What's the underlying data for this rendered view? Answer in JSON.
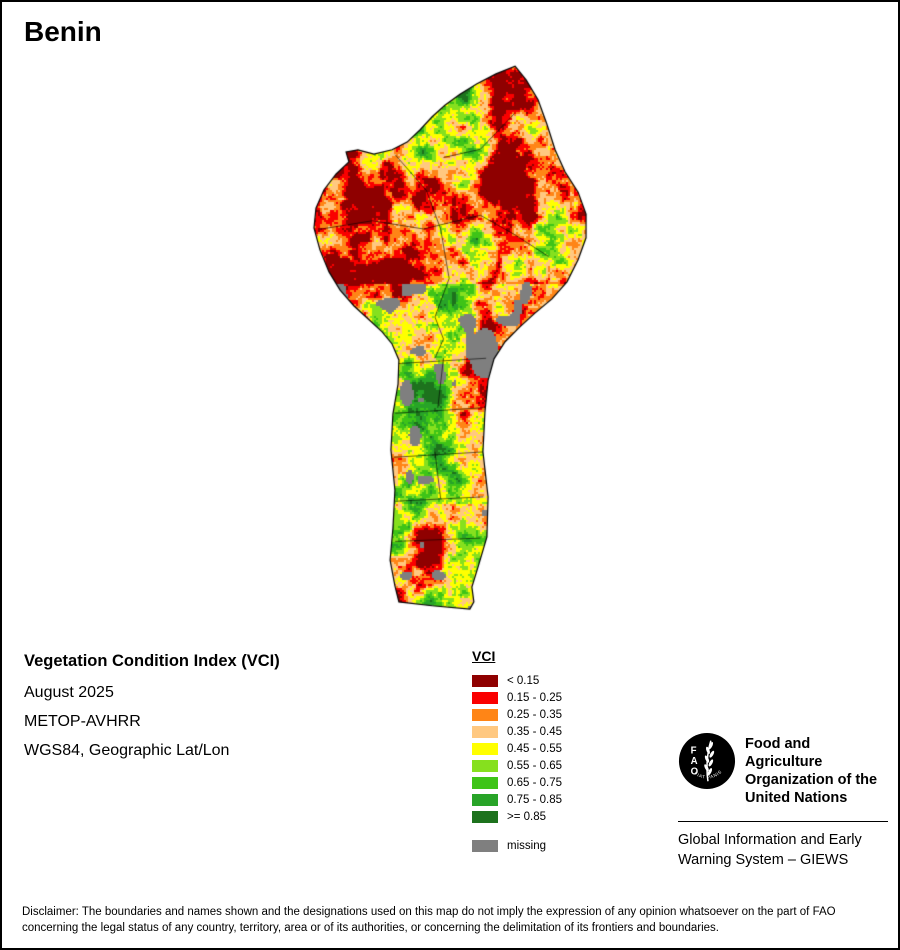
{
  "title": "Benin",
  "info": {
    "product": "Vegetation Condition Index (VCI)",
    "date": "August 2025",
    "sensor": "METOP-AVHRR",
    "projection": "WGS84, Geographic Lat/Lon"
  },
  "legend": {
    "title": "VCI",
    "items": [
      {
        "label": "< 0.15",
        "color": "#8f0000"
      },
      {
        "label": "0.15 - 0.25",
        "color": "#fa0000"
      },
      {
        "label": "0.25 - 0.35",
        "color": "#ff8516"
      },
      {
        "label": "0.35 - 0.45",
        "color": "#ffc880"
      },
      {
        "label": "0.45 - 0.55",
        "color": "#ffff00"
      },
      {
        "label": "0.55 - 0.65",
        "color": "#86e01e"
      },
      {
        "label": "0.65 - 0.75",
        "color": "#3ec417"
      },
      {
        "label": "0.75 - 0.85",
        "color": "#28a428"
      },
      {
        "label": ">= 0.85",
        "color": "#1d721d"
      }
    ],
    "missing": {
      "label": "missing",
      "color": "#7f7f7f"
    }
  },
  "footer": {
    "org_name": "Food and Agriculture\nOrganization of the\nUnited Nations",
    "giews": "Global Information and Early\nWarning System – GIEWS",
    "logo_letters": [
      "F",
      "A",
      "O"
    ],
    "logo_motto": "FIAT PANIS"
  },
  "disclaimer": "Disclaimer: The boundaries and names shown and the designations used on this map do not imply the expression of any opinion whatsoever on the part of FAO concerning the legal status of any country, territory, area or of its authorities, or concerning the delimitation of its frontiers and boundaries."
}
